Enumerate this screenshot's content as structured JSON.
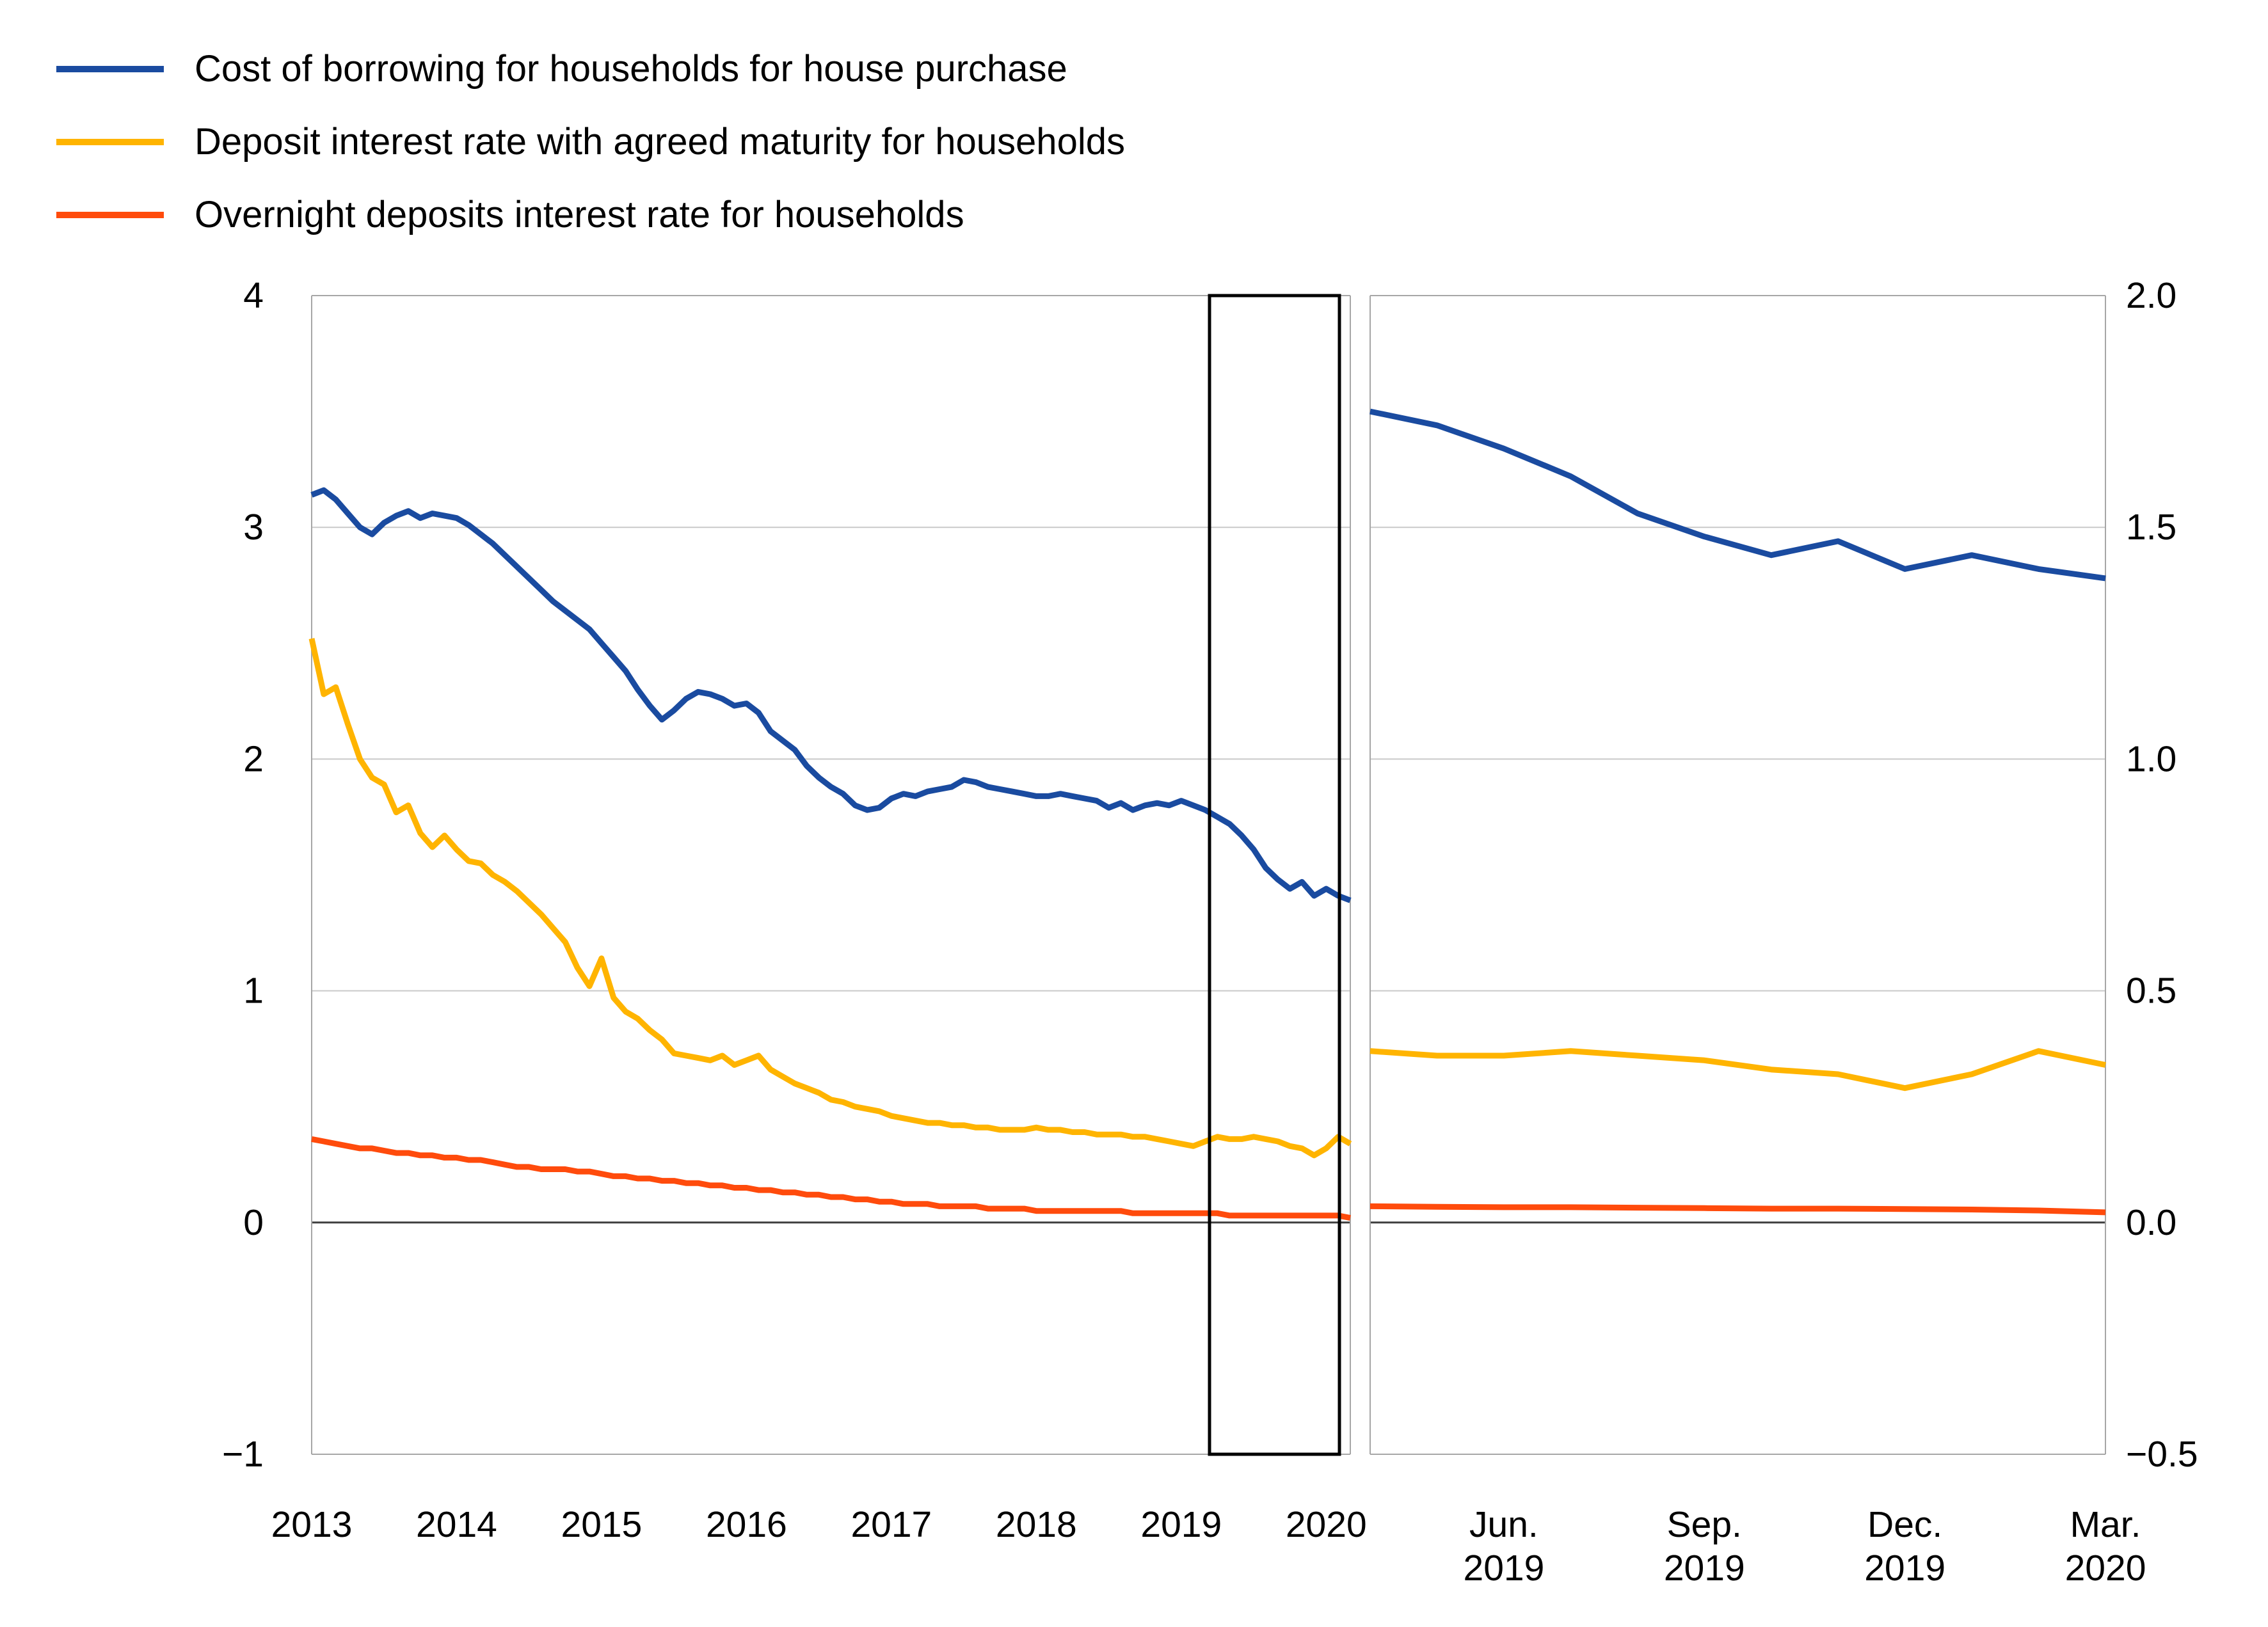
{
  "legend": {
    "items": [
      {
        "label": "Cost of borrowing for households for house purchase",
        "color": "#1a4ba0"
      },
      {
        "label": "Deposit interest rate with agreed maturity for households",
        "color": "#ffb400"
      },
      {
        "label": "Overnight deposits interest rate for households",
        "color": "#ff4b0c"
      }
    ]
  },
  "style_colors": {
    "grid": "#c9c9c9",
    "border": "#a6a6a6",
    "zero_line": "#3f3f3f",
    "highlight_box": "#000000",
    "text": "#000000",
    "background": "#ffffff"
  },
  "chart_data": [
    {
      "type": "line",
      "panel": "left",
      "title": "",
      "x_unit": "month",
      "x_start": "2013-01",
      "x_end": "2020-03",
      "ylim": [
        -1,
        4
      ],
      "grid": "horizontal",
      "zero_line": true,
      "legend_position": "top-left",
      "highlight_box": {
        "from": "2019-04",
        "to": "2020-03"
      },
      "xticks": [
        {
          "label": "2013",
          "month_index": 0
        },
        {
          "label": "2014",
          "month_index": 12
        },
        {
          "label": "2015",
          "month_index": 24
        },
        {
          "label": "2016",
          "month_index": 36
        },
        {
          "label": "2017",
          "month_index": 48
        },
        {
          "label": "2018",
          "month_index": 60
        },
        {
          "label": "2019",
          "month_index": 72
        },
        {
          "label": "2020",
          "month_index": 84
        }
      ],
      "yticks": [
        {
          "label": "4",
          "value": 4
        },
        {
          "label": "3",
          "value": 3
        },
        {
          "label": "2",
          "value": 2
        },
        {
          "label": "1",
          "value": 1
        },
        {
          "label": "0",
          "value": 0
        },
        {
          "label": "−1",
          "value": -1
        }
      ],
      "series": [
        {
          "name": "Cost of borrowing for households for house purchase",
          "color": "#1a4ba0",
          "values": [
            3.14,
            3.16,
            3.12,
            3.06,
            3.0,
            2.97,
            3.02,
            3.05,
            3.07,
            3.04,
            3.06,
            3.05,
            3.04,
            3.01,
            2.97,
            2.93,
            2.88,
            2.83,
            2.78,
            2.73,
            2.68,
            2.64,
            2.6,
            2.56,
            2.5,
            2.44,
            2.38,
            2.3,
            2.23,
            2.17,
            2.21,
            2.26,
            2.29,
            2.28,
            2.26,
            2.23,
            2.24,
            2.2,
            2.12,
            2.08,
            2.04,
            1.97,
            1.92,
            1.88,
            1.85,
            1.8,
            1.78,
            1.79,
            1.83,
            1.85,
            1.84,
            1.86,
            1.87,
            1.88,
            1.91,
            1.9,
            1.88,
            1.87,
            1.86,
            1.85,
            1.84,
            1.84,
            1.85,
            1.84,
            1.83,
            1.82,
            1.79,
            1.81,
            1.78,
            1.8,
            1.81,
            1.8,
            1.82,
            1.8,
            1.78,
            1.75,
            1.72,
            1.67,
            1.61,
            1.53,
            1.48,
            1.44,
            1.47,
            1.41,
            1.44,
            1.41,
            1.39
          ]
        },
        {
          "name": "Deposit interest rate with agreed maturity for households",
          "color": "#ffb400",
          "values": [
            2.52,
            2.28,
            2.31,
            2.15,
            2.0,
            1.92,
            1.89,
            1.77,
            1.8,
            1.68,
            1.62,
            1.67,
            1.61,
            1.56,
            1.55,
            1.5,
            1.47,
            1.43,
            1.38,
            1.33,
            1.27,
            1.21,
            1.1,
            1.02,
            1.14,
            0.97,
            0.91,
            0.88,
            0.83,
            0.79,
            0.73,
            0.72,
            0.71,
            0.7,
            0.72,
            0.68,
            0.7,
            0.72,
            0.66,
            0.63,
            0.6,
            0.58,
            0.56,
            0.53,
            0.52,
            0.5,
            0.49,
            0.48,
            0.46,
            0.45,
            0.44,
            0.43,
            0.43,
            0.42,
            0.42,
            0.41,
            0.41,
            0.4,
            0.4,
            0.4,
            0.41,
            0.4,
            0.4,
            0.39,
            0.39,
            0.38,
            0.38,
            0.38,
            0.37,
            0.37,
            0.36,
            0.35,
            0.34,
            0.33,
            0.35,
            0.37,
            0.36,
            0.36,
            0.37,
            0.36,
            0.35,
            0.33,
            0.32,
            0.29,
            0.32,
            0.37,
            0.34
          ]
        },
        {
          "name": "Overnight deposits interest rate for households",
          "color": "#ff4b0c",
          "values": [
            0.36,
            0.35,
            0.34,
            0.33,
            0.32,
            0.32,
            0.31,
            0.3,
            0.3,
            0.29,
            0.29,
            0.28,
            0.28,
            0.27,
            0.27,
            0.26,
            0.25,
            0.24,
            0.24,
            0.23,
            0.23,
            0.23,
            0.22,
            0.22,
            0.21,
            0.2,
            0.2,
            0.19,
            0.19,
            0.18,
            0.18,
            0.17,
            0.17,
            0.16,
            0.16,
            0.15,
            0.15,
            0.14,
            0.14,
            0.13,
            0.13,
            0.12,
            0.12,
            0.11,
            0.11,
            0.1,
            0.1,
            0.09,
            0.09,
            0.08,
            0.08,
            0.08,
            0.07,
            0.07,
            0.07,
            0.07,
            0.06,
            0.06,
            0.06,
            0.06,
            0.05,
            0.05,
            0.05,
            0.05,
            0.05,
            0.05,
            0.05,
            0.05,
            0.04,
            0.04,
            0.04,
            0.04,
            0.04,
            0.04,
            0.04,
            0.04,
            0.03,
            0.03,
            0.03,
            0.03,
            0.03,
            0.03,
            0.03,
            0.03,
            0.03,
            0.03,
            0.02
          ]
        }
      ]
    },
    {
      "type": "line",
      "panel": "right",
      "title": "",
      "x_unit": "month",
      "x_start": "2019-04",
      "x_end": "2020-03",
      "ylim": [
        -0.5,
        2.0
      ],
      "grid": "horizontal",
      "zero_line": true,
      "xticks": [
        {
          "label_line1": "Jun.",
          "label_line2": "2019",
          "month_index": 2
        },
        {
          "label_line1": "Sep.",
          "label_line2": "2019",
          "month_index": 5
        },
        {
          "label_line1": "Dec.",
          "label_line2": "2019",
          "month_index": 8
        },
        {
          "label_line1": "Mar.",
          "label_line2": "2020",
          "month_index": 11
        }
      ],
      "yticks": [
        {
          "label": "2.0",
          "value": 2.0
        },
        {
          "label": "1.5",
          "value": 1.5
        },
        {
          "label": "1.0",
          "value": 1.0
        },
        {
          "label": "0.5",
          "value": 0.5
        },
        {
          "label": "0.0",
          "value": 0.0
        },
        {
          "label": "−0.5",
          "value": -0.5
        }
      ],
      "series": [
        {
          "name": "Cost of borrowing for households for house purchase",
          "color": "#1a4ba0",
          "values": [
            1.75,
            1.72,
            1.67,
            1.61,
            1.53,
            1.48,
            1.44,
            1.47,
            1.41,
            1.44,
            1.41,
            1.39
          ]
        },
        {
          "name": "Deposit interest rate with agreed maturity for households",
          "color": "#ffb400",
          "values": [
            0.37,
            0.36,
            0.36,
            0.37,
            0.36,
            0.35,
            0.33,
            0.32,
            0.29,
            0.32,
            0.37,
            0.34
          ]
        },
        {
          "name": "Overnight deposits interest rate for households",
          "color": "#ff4b0c",
          "values": [
            0.035,
            0.034,
            0.033,
            0.033,
            0.032,
            0.031,
            0.03,
            0.03,
            0.029,
            0.028,
            0.026,
            0.022
          ]
        }
      ]
    }
  ]
}
